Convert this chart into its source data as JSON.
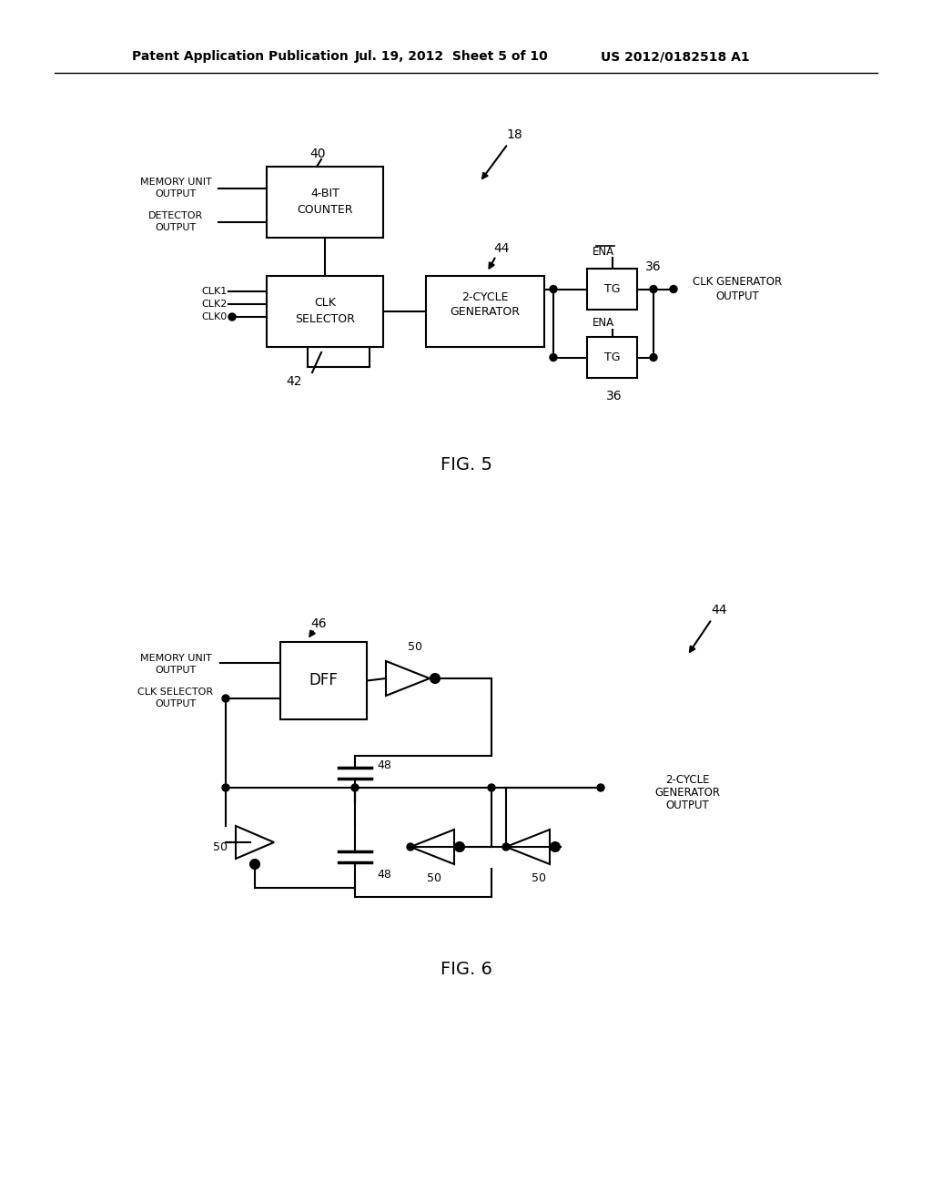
{
  "bg_color": "#ffffff",
  "line_color": "#000000",
  "header_line1": "Patent Application Publication",
  "header_line2": "Jul. 19, 2012  Sheet 5 of 10",
  "header_line3": "US 2012/0182518 A1",
  "fig5_label": "FIG. 5",
  "fig6_label": "FIG. 6"
}
